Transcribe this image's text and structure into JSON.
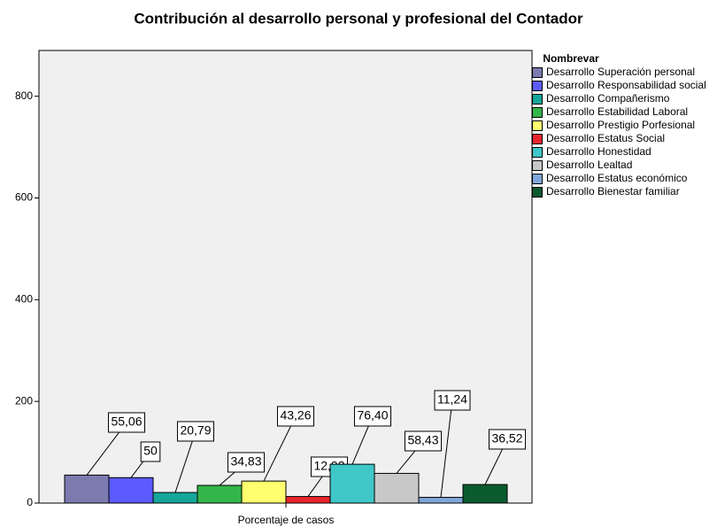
{
  "chart_data": {
    "type": "bar",
    "title": "Contribución al desarrollo personal y profesional del Contador",
    "categories": [
      "Porcentaje de casos"
    ],
    "legend_title": "Nombrevar",
    "legend": "right",
    "series": [
      {
        "name": "Desarrollo Superación personal",
        "color": "#7b7bb0",
        "values": [
          55.06
        ],
        "value_labels": [
          "55,06"
        ]
      },
      {
        "name": "Desarrollo Responsabilidad social",
        "color": "#5b5bff",
        "values": [
          50
        ],
        "value_labels": [
          "50"
        ]
      },
      {
        "name": "Desarrollo Compañerismo",
        "color": "#14a69b",
        "values": [
          20.79
        ],
        "value_labels": [
          "20,79"
        ]
      },
      {
        "name": "Desarrollo Estabilidad Laboral",
        "color": "#34b549",
        "values": [
          34.83
        ],
        "value_labels": [
          "34,83"
        ]
      },
      {
        "name": "Desarrollo Prestigio Porfesional",
        "color": "#ffff70",
        "values": [
          43.26
        ],
        "value_labels": [
          "43,26"
        ]
      },
      {
        "name": "Desarrollo Estatus Social",
        "color": "#e8242c",
        "values": [
          12.92
        ],
        "value_labels": [
          "12,92"
        ]
      },
      {
        "name": "Desarrollo Honestidad",
        "color": "#40c7c7",
        "values": [
          76.4
        ],
        "value_labels": [
          "76,40"
        ]
      },
      {
        "name": "Desarrollo Lealtad",
        "color": "#c8c8c8",
        "values": [
          58.43
        ],
        "value_labels": [
          "58,43"
        ]
      },
      {
        "name": "Desarrollo Estatus económico",
        "color": "#7fa7d9",
        "values": [
          11.24
        ],
        "value_labels": [
          "11,24"
        ]
      },
      {
        "name": "Desarrollo Bienestar familiar",
        "color": "#0b5a2f",
        "values": [
          36.52
        ],
        "value_labels": [
          "36,52"
        ]
      }
    ],
    "ylim": [
      0,
      890
    ],
    "yticks": [
      0,
      200,
      400,
      600,
      800
    ]
  }
}
